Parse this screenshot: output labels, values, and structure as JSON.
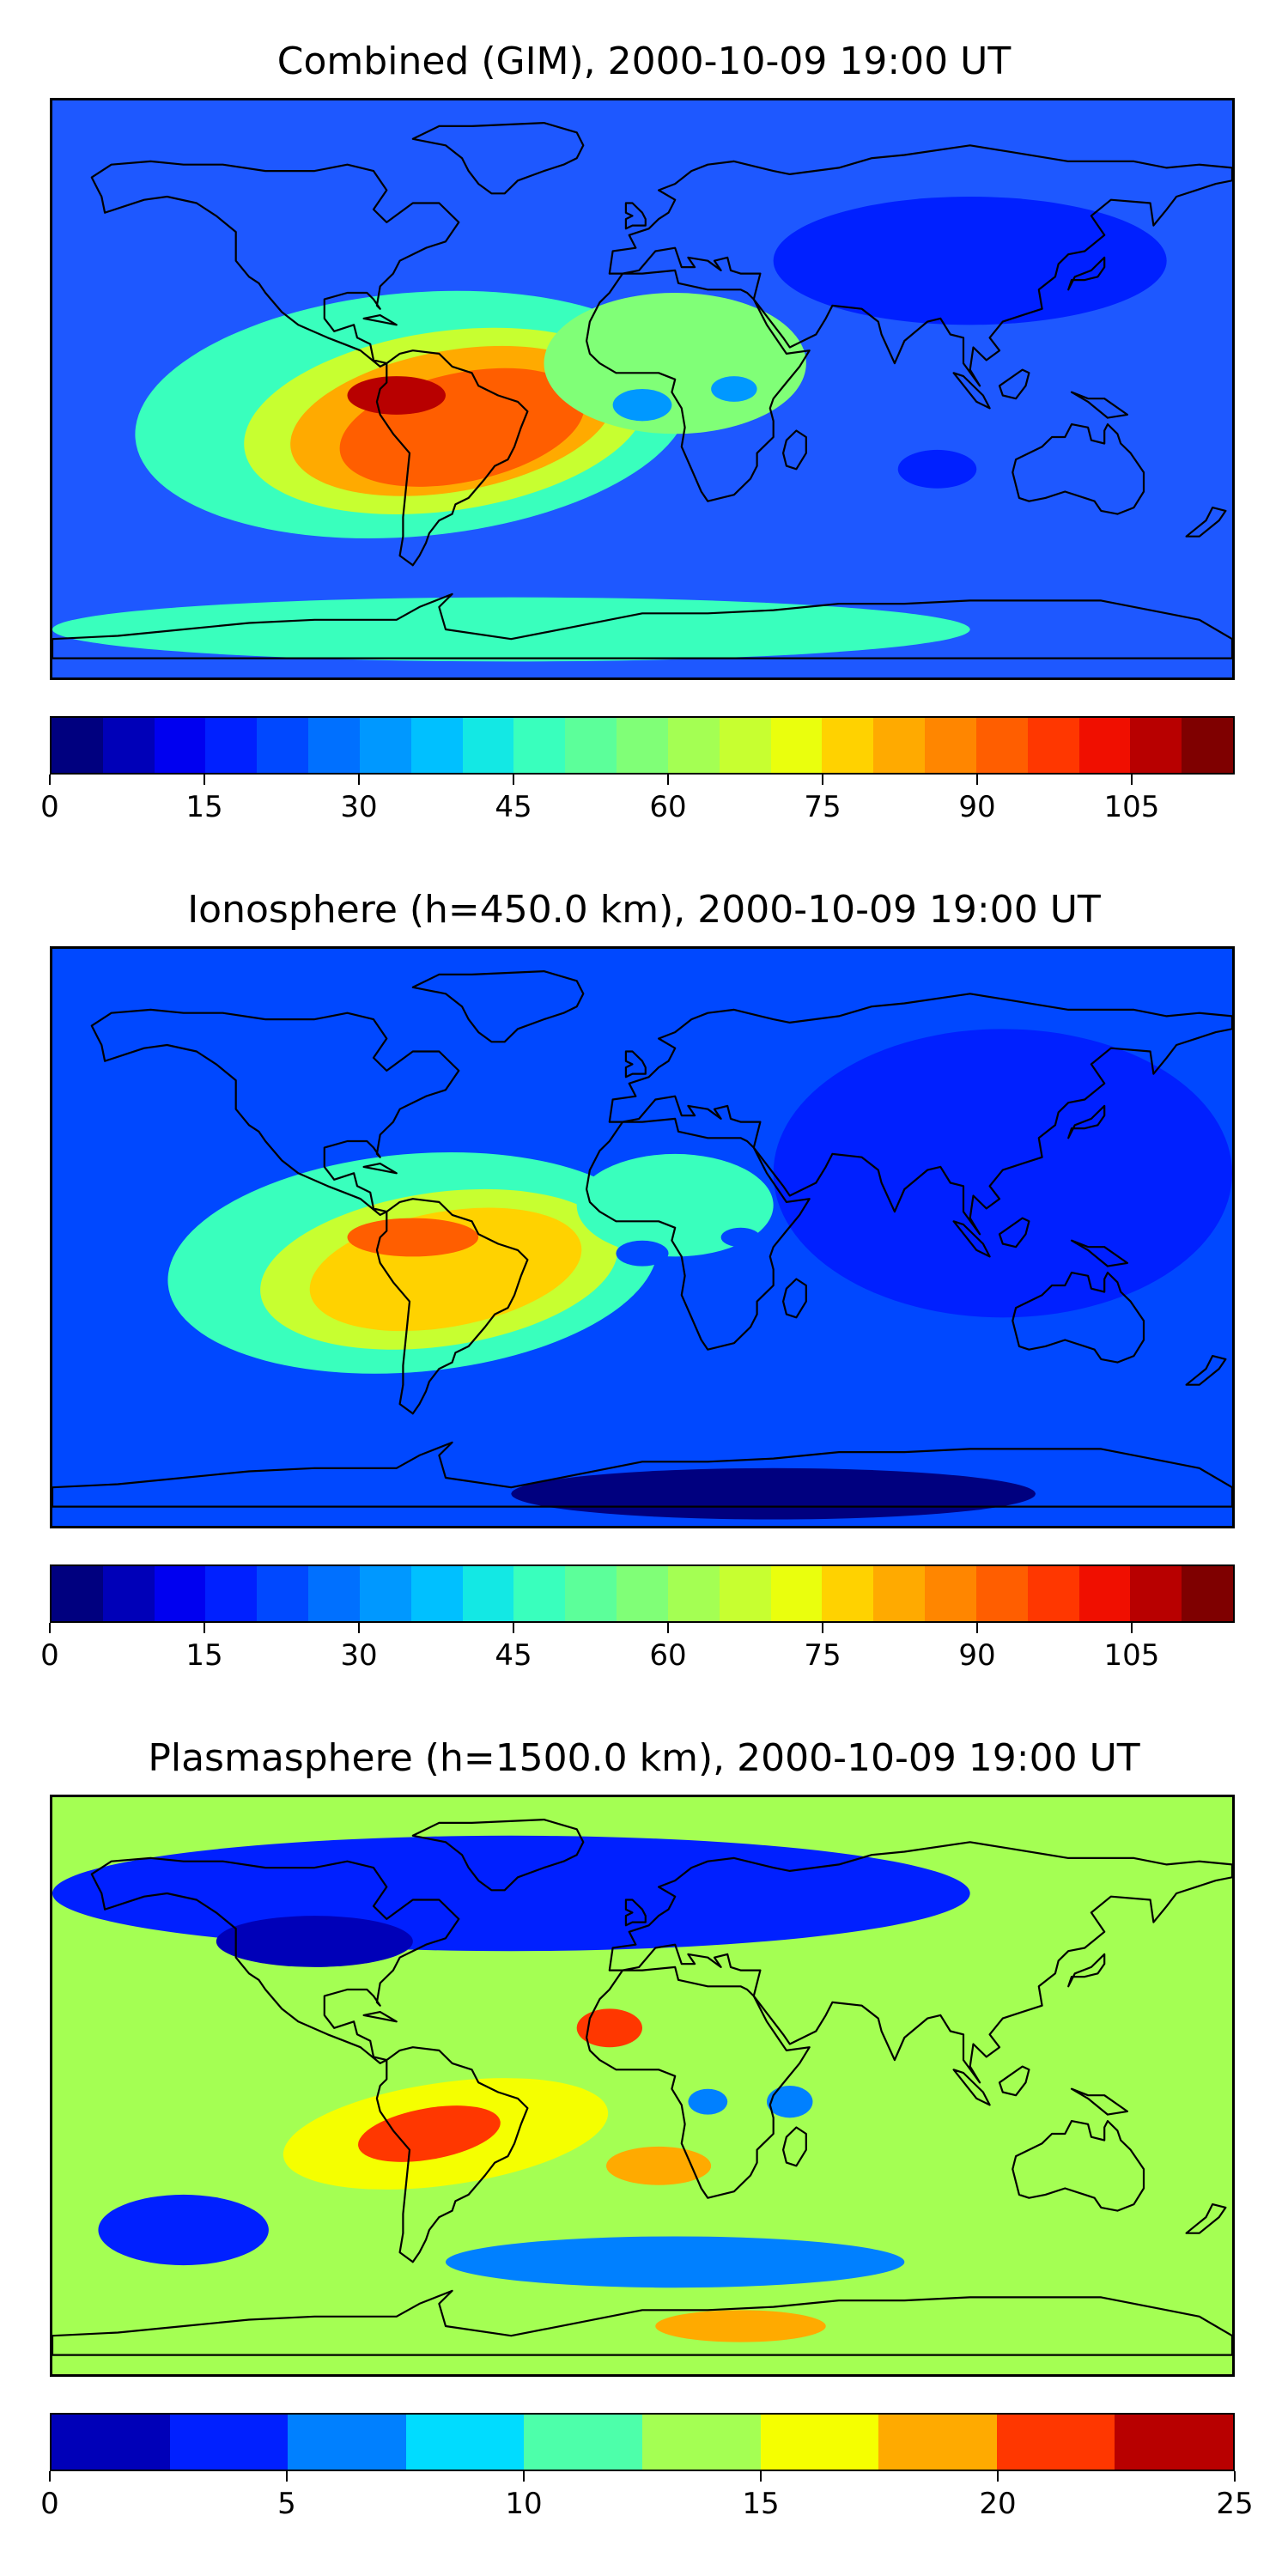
{
  "panels": [
    {
      "title": "Combined (GIM), 2000-10-09 19:00 UT",
      "colorbar": {
        "min": 0,
        "max": 115,
        "levels": 23,
        "tick_labels": [
          "0",
          "15",
          "30",
          "45",
          "60",
          "75",
          "90",
          "105"
        ],
        "colors": [
          "#00007f",
          "#0000b8",
          "#0000f0",
          "#0020ff",
          "#0048ff",
          "#0070ff",
          "#0098ff",
          "#00c0ff",
          "#13e8e4",
          "#39ffbd",
          "#5cff9a",
          "#80ff77",
          "#a4ff53",
          "#c7ff30",
          "#eaff0d",
          "#ffd200",
          "#ffaa00",
          "#ff8600",
          "#ff5e00",
          "#ff3700",
          "#f00f00",
          "#b80000",
          "#7f0000"
        ]
      },
      "field": {
        "background": "#1e58ff",
        "features": [
          {
            "lon": -70,
            "lat": -8,
            "rx": 85,
            "ry": 38,
            "rot": -5,
            "color": "#39ffbd"
          },
          {
            "lon": -60,
            "lat": -10,
            "rx": 62,
            "ry": 28,
            "rot": -8,
            "color": "#c7ff30"
          },
          {
            "lon": -58,
            "lat": -10,
            "rx": 50,
            "ry": 22,
            "rot": -10,
            "color": "#ffaa00"
          },
          {
            "lon": -55,
            "lat": -12,
            "rx": 38,
            "ry": 17,
            "rot": -12,
            "color": "#ff5e00"
          },
          {
            "lon": -75,
            "lat": -2,
            "rx": 15,
            "ry": 6,
            "rot": 0,
            "color": "#b80000"
          },
          {
            "lon": 10,
            "lat": 8,
            "rx": 40,
            "ry": 22,
            "rot": 0,
            "color": "#80ff77"
          },
          {
            "lon": 0,
            "lat": -5,
            "rx": 9,
            "ry": 5,
            "rot": 0,
            "color": "#0098ff"
          },
          {
            "lon": 28,
            "lat": 0,
            "rx": 7,
            "ry": 4,
            "rot": 0,
            "color": "#0098ff"
          },
          {
            "lon": 100,
            "lat": 40,
            "rx": 60,
            "ry": 20,
            "rot": 0,
            "color": "#0020ff"
          },
          {
            "lon": 90,
            "lat": -25,
            "rx": 12,
            "ry": 6,
            "rot": 0,
            "color": "#0020ff"
          },
          {
            "lon": -40,
            "lat": -75,
            "rx": 140,
            "ry": 10,
            "rot": 0,
            "color": "#39ffbd"
          }
        ]
      }
    },
    {
      "title": "Ionosphere  (h=450.0 km), 2000-10-09 19:00 UT",
      "colorbar": {
        "min": 0,
        "max": 115,
        "levels": 23,
        "tick_labels": [
          "0",
          "15",
          "30",
          "45",
          "60",
          "75",
          "90",
          "105"
        ],
        "colors": [
          "#00007f",
          "#0000b8",
          "#0000f0",
          "#0020ff",
          "#0048ff",
          "#0070ff",
          "#0098ff",
          "#00c0ff",
          "#13e8e4",
          "#39ffbd",
          "#5cff9a",
          "#80ff77",
          "#a4ff53",
          "#c7ff30",
          "#eaff0d",
          "#ffd200",
          "#ffaa00",
          "#ff8600",
          "#ff5e00",
          "#ff3700",
          "#f00f00",
          "#b80000",
          "#7f0000"
        ]
      },
      "field": {
        "background": "#0048ff",
        "features": [
          {
            "lon": -70,
            "lat": -8,
            "rx": 75,
            "ry": 34,
            "rot": -5,
            "color": "#39ffbd"
          },
          {
            "lon": -62,
            "lat": -10,
            "rx": 55,
            "ry": 24,
            "rot": -8,
            "color": "#c7ff30"
          },
          {
            "lon": -60,
            "lat": -10,
            "rx": 42,
            "ry": 18,
            "rot": -10,
            "color": "#ffd200"
          },
          {
            "lon": -70,
            "lat": 0,
            "rx": 20,
            "ry": 6,
            "rot": 0,
            "color": "#ff5e00"
          },
          {
            "lon": 10,
            "lat": 10,
            "rx": 30,
            "ry": 16,
            "rot": 0,
            "color": "#39ffbd"
          },
          {
            "lon": 0,
            "lat": -5,
            "rx": 8,
            "ry": 4,
            "rot": 0,
            "color": "#0048ff"
          },
          {
            "lon": 30,
            "lat": 0,
            "rx": 6,
            "ry": 3,
            "rot": 0,
            "color": "#0048ff"
          },
          {
            "lon": 110,
            "lat": 20,
            "rx": 70,
            "ry": 45,
            "rot": 0,
            "color": "#0020ff"
          },
          {
            "lon": 40,
            "lat": -80,
            "rx": 80,
            "ry": 8,
            "rot": 0,
            "color": "#00007f"
          }
        ]
      }
    },
    {
      "title": "Plasmasphere (h=1500.0 km), 2000-10-09 19:00 UT",
      "colorbar": {
        "min": 0,
        "max": 25,
        "levels": 10,
        "tick_labels": [
          "0",
          "5",
          "10",
          "15",
          "20",
          "25"
        ],
        "colors": [
          "#0000b8",
          "#0020ff",
          "#0080ff",
          "#00dcff",
          "#4dffaa",
          "#a4ff53",
          "#f5ff00",
          "#ffaa00",
          "#ff3700",
          "#b80000"
        ]
      },
      "field": {
        "background": "#a4ff53",
        "features": [
          {
            "lon": -40,
            "lat": 60,
            "rx": 140,
            "ry": 18,
            "rot": 0,
            "color": "#0020ff"
          },
          {
            "lon": -100,
            "lat": 45,
            "rx": 30,
            "ry": 8,
            "rot": 0,
            "color": "#0000b8"
          },
          {
            "lon": -60,
            "lat": -15,
            "rx": 50,
            "ry": 16,
            "rot": -8,
            "color": "#f5ff00"
          },
          {
            "lon": -65,
            "lat": -15,
            "rx": 22,
            "ry": 8,
            "rot": -10,
            "color": "#ff3700"
          },
          {
            "lon": -10,
            "lat": 18,
            "rx": 10,
            "ry": 6,
            "rot": 0,
            "color": "#ff3700"
          },
          {
            "lon": 5,
            "lat": -25,
            "rx": 16,
            "ry": 6,
            "rot": 0,
            "color": "#ffaa00"
          },
          {
            "lon": 20,
            "lat": -5,
            "rx": 6,
            "ry": 4,
            "rot": 0,
            "color": "#0080ff"
          },
          {
            "lon": 45,
            "lat": -5,
            "rx": 7,
            "ry": 5,
            "rot": 0,
            "color": "#0080ff"
          },
          {
            "lon": -140,
            "lat": -45,
            "rx": 26,
            "ry": 11,
            "rot": 0,
            "color": "#0020ff"
          },
          {
            "lon": 10,
            "lat": -55,
            "rx": 70,
            "ry": 8,
            "rot": 0,
            "color": "#0080ff"
          },
          {
            "lon": 30,
            "lat": -75,
            "rx": 26,
            "ry": 5,
            "rot": 0,
            "color": "#ffaa00"
          }
        ]
      }
    }
  ]
}
